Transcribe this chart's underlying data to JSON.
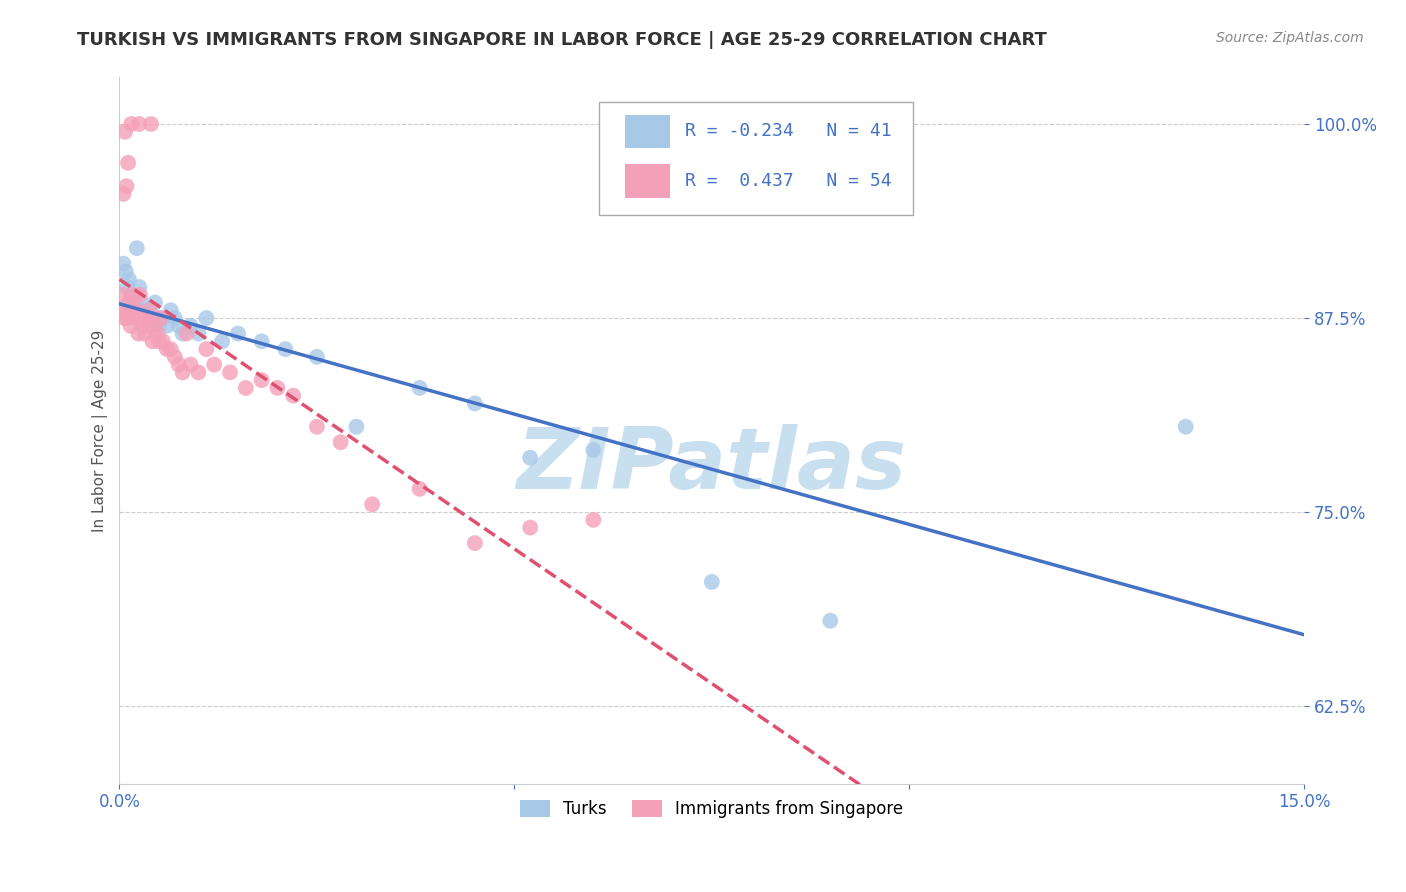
{
  "title": "TURKISH VS IMMIGRANTS FROM SINGAPORE IN LABOR FORCE | AGE 25-29 CORRELATION CHART",
  "source_text": "Source: ZipAtlas.com",
  "ylabel": "In Labor Force | Age 25-29",
  "xlim": [
    0.0,
    15.0
  ],
  "ylim": [
    57.5,
    103.0
  ],
  "x_ticks": [
    0.0,
    5.0,
    10.0,
    15.0
  ],
  "x_tick_labels": [
    "0.0%",
    "",
    "",
    "15.0%"
  ],
  "y_ticks": [
    62.5,
    75.0,
    87.5,
    100.0
  ],
  "y_tick_labels": [
    "62.5%",
    "75.0%",
    "87.5%",
    "100.0%"
  ],
  "blue_color": "#a8c8e8",
  "pink_color": "#f4a0b8",
  "blue_line_color": "#4472c4",
  "pink_line_color": "#e05070",
  "R_blue": -0.234,
  "N_blue": 41,
  "R_pink": 0.437,
  "N_pink": 54,
  "watermark": "ZIPatlas",
  "title_fontsize": 13,
  "turks_x": [
    0.05,
    0.08,
    0.1,
    0.12,
    0.15,
    0.18,
    0.2,
    0.22,
    0.25,
    0.28,
    0.3,
    0.32,
    0.35,
    0.38,
    0.4,
    0.42,
    0.45,
    0.48,
    0.5,
    0.55,
    0.6,
    0.65,
    0.7,
    0.75,
    0.8,
    0.9,
    1.0,
    1.1,
    1.3,
    1.5,
    1.8,
    2.1,
    2.5,
    3.0,
    3.8,
    4.5,
    5.2,
    6.0,
    7.5,
    9.0,
    13.5
  ],
  "turks_y": [
    91.0,
    90.5,
    89.5,
    90.0,
    89.0,
    88.5,
    88.0,
    92.0,
    89.5,
    88.5,
    88.0,
    87.5,
    88.0,
    87.0,
    87.5,
    87.0,
    88.5,
    87.5,
    87.0,
    87.5,
    87.0,
    88.0,
    87.5,
    87.0,
    86.5,
    87.0,
    86.5,
    87.5,
    86.0,
    86.5,
    86.0,
    85.5,
    85.0,
    80.5,
    83.0,
    82.0,
    78.5,
    79.0,
    70.5,
    68.0,
    80.5
  ],
  "singapore_x": [
    0.02,
    0.04,
    0.06,
    0.08,
    0.1,
    0.12,
    0.14,
    0.16,
    0.18,
    0.2,
    0.22,
    0.24,
    0.26,
    0.28,
    0.3,
    0.32,
    0.35,
    0.38,
    0.4,
    0.42,
    0.45,
    0.48,
    0.5,
    0.52,
    0.55,
    0.6,
    0.65,
    0.7,
    0.75,
    0.8,
    0.85,
    0.9,
    1.0,
    1.1,
    1.2,
    1.4,
    1.6,
    1.8,
    2.0,
    2.2,
    2.5,
    2.8,
    3.2,
    3.8,
    4.5,
    5.2,
    6.0,
    0.05,
    0.07,
    0.09,
    0.11,
    0.15,
    0.25,
    0.4
  ],
  "singapore_y": [
    88.0,
    89.0,
    87.5,
    88.0,
    87.5,
    88.5,
    87.0,
    89.0,
    88.0,
    87.5,
    88.0,
    86.5,
    89.0,
    87.5,
    87.0,
    86.5,
    87.5,
    88.0,
    87.5,
    86.0,
    87.0,
    86.5,
    86.0,
    87.5,
    86.0,
    85.5,
    85.5,
    85.0,
    84.5,
    84.0,
    86.5,
    84.5,
    84.0,
    85.5,
    84.5,
    84.0,
    83.0,
    83.5,
    83.0,
    82.5,
    80.5,
    79.5,
    75.5,
    76.5,
    73.0,
    74.0,
    74.5,
    95.5,
    99.5,
    96.0,
    97.5,
    100.0,
    100.0,
    100.0
  ]
}
